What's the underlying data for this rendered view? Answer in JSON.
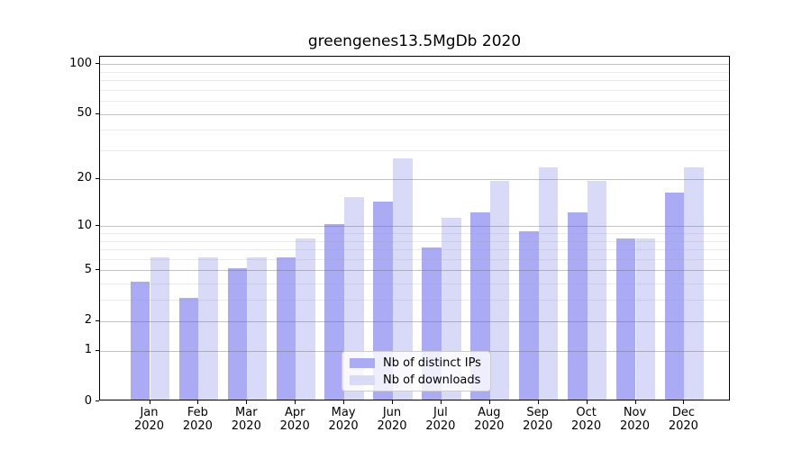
{
  "chart_data": {
    "type": "bar",
    "title": "greengenes13.5MgDb 2020",
    "categories": [
      "Jan 2020",
      "Feb 2020",
      "Mar 2020",
      "Apr 2020",
      "May 2020",
      "Jun 2020",
      "Jul 2020",
      "Aug 2020",
      "Sep 2020",
      "Oct 2020",
      "Nov 2020",
      "Dec 2020"
    ],
    "series": [
      {
        "name": "Nb of distinct IPs",
        "color": "#aaaaf5",
        "values": [
          4,
          3,
          5,
          6,
          10,
          14,
          7,
          12,
          9,
          12,
          8,
          16
        ]
      },
      {
        "name": "Nb of downloads",
        "color": "#d9d9f8",
        "values": [
          6,
          6,
          6,
          8,
          15,
          26,
          11,
          19,
          23,
          19,
          8,
          23
        ]
      }
    ],
    "xlabel": "",
    "ylabel": "",
    "y_scale": "log1p",
    "y_axis_ticks": [
      100,
      50,
      20,
      10,
      5,
      2,
      1,
      0
    ],
    "y_minor_gridlines": [
      3,
      4,
      6,
      7,
      8,
      9,
      30,
      40,
      60,
      70,
      80,
      90
    ],
    "ylim": [
      0,
      110.5
    ],
    "grid": "both",
    "legend_position": "lower center",
    "colors": {
      "grid_major": "#b0b0b0",
      "grid_minor": "#e6e6e6",
      "spine": "#000000",
      "background": "#ffffff",
      "text": "#000000"
    }
  }
}
